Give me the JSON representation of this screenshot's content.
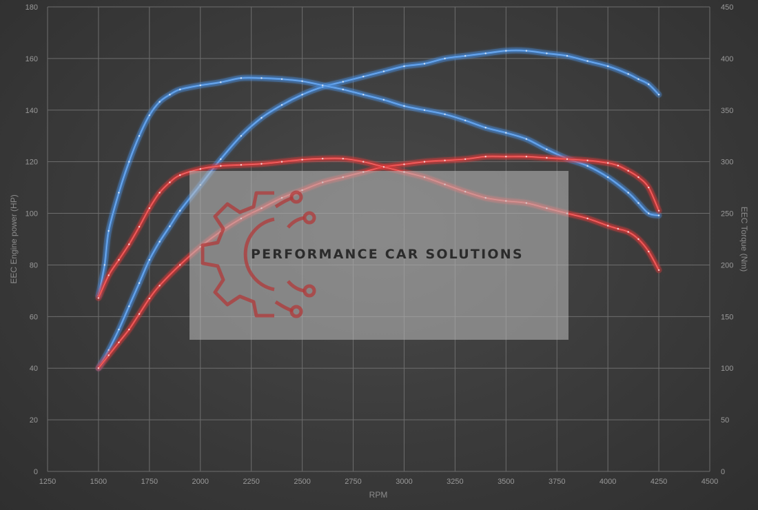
{
  "chart_data": {
    "type": "line",
    "xlabel": "RPM",
    "ylabel": "EEC Engine power (HP)",
    "y2label": "EEC Torque (Nm)",
    "xlim": [
      1250,
      4500
    ],
    "xticks": [
      1250,
      1500,
      1750,
      2000,
      2250,
      2500,
      2750,
      3000,
      3250,
      3500,
      3750,
      4000,
      4250,
      4500
    ],
    "ylim": [
      0,
      180
    ],
    "yticks": [
      0,
      20,
      40,
      60,
      80,
      100,
      120,
      140,
      160,
      180
    ],
    "y2lim": [
      0,
      450
    ],
    "y2ticks": [
      0,
      50,
      100,
      150,
      200,
      250,
      300,
      350,
      400,
      450
    ],
    "grid": true,
    "colors": {
      "tuned": "#4a8fe0",
      "stock": "#e03a3a"
    },
    "series": [
      {
        "axis": "left",
        "color": "tuned",
        "x": [
          1500,
          1550,
          1600,
          1650,
          1700,
          1750,
          1800,
          1850,
          1900,
          2000,
          2100,
          2200,
          2300,
          2400,
          2500,
          2600,
          2700,
          2800,
          2900,
          3000,
          3100,
          3200,
          3300,
          3400,
          3500,
          3600,
          3700,
          3800,
          3900,
          4000,
          4100,
          4150,
          4200,
          4250
        ],
        "y": [
          40,
          47,
          55,
          64,
          73,
          82,
          89,
          95,
          101,
          111,
          121,
          130,
          137,
          142,
          146,
          149,
          151,
          153,
          155,
          157,
          158,
          160,
          161,
          162,
          163,
          163,
          162,
          161,
          159,
          157,
          154,
          152,
          150,
          146
        ]
      },
      {
        "axis": "right",
        "color": "tuned",
        "x": [
          1500,
          1530,
          1550,
          1600,
          1650,
          1700,
          1750,
          1800,
          1850,
          1900,
          2000,
          2100,
          2200,
          2300,
          2400,
          2500,
          2600,
          2700,
          2800,
          2900,
          3000,
          3100,
          3200,
          3300,
          3400,
          3500,
          3600,
          3700,
          3800,
          3900,
          4000,
          4100,
          4150,
          4200,
          4250
        ],
        "y": [
          170,
          200,
          233,
          270,
          300,
          325,
          345,
          358,
          365,
          370,
          374,
          377,
          381,
          381,
          380,
          378,
          374,
          370,
          365,
          360,
          354,
          350,
          346,
          340,
          333,
          328,
          322,
          312,
          303,
          296,
          285,
          270,
          260,
          250,
          248
        ]
      },
      {
        "axis": "left",
        "color": "stock",
        "x": [
          1500,
          1550,
          1600,
          1650,
          1700,
          1750,
          1800,
          1900,
          2000,
          2100,
          2200,
          2300,
          2400,
          2500,
          2600,
          2700,
          2800,
          2900,
          3000,
          3100,
          3200,
          3300,
          3400,
          3500,
          3600,
          3700,
          3800,
          3900,
          4000,
          4050,
          4100,
          4150,
          4200,
          4250
        ],
        "y": [
          40,
          45,
          50,
          55,
          61,
          67,
          72,
          80,
          87,
          93,
          98,
          102,
          106,
          109,
          112,
          114,
          116,
          118,
          119,
          120,
          120.5,
          121,
          122,
          122,
          122,
          121.5,
          121,
          120.5,
          119.5,
          118.5,
          116.5,
          114,
          110,
          101
        ]
      },
      {
        "axis": "right",
        "color": "stock",
        "x": [
          1500,
          1550,
          1600,
          1650,
          1700,
          1750,
          1800,
          1850,
          1900,
          2000,
          2100,
          2200,
          2300,
          2400,
          2500,
          2600,
          2700,
          2800,
          2900,
          3000,
          3100,
          3200,
          3300,
          3400,
          3500,
          3600,
          3700,
          3800,
          3900,
          4000,
          4050,
          4100,
          4150,
          4200,
          4250
        ],
        "y": [
          168,
          190,
          205,
          220,
          237,
          255,
          270,
          280,
          287,
          293,
          296,
          297,
          298,
          300,
          302,
          303,
          303,
          300,
          295,
          290,
          285,
          278,
          271,
          265,
          262,
          260,
          255,
          250,
          245,
          238,
          235,
          232,
          225,
          213,
          195
        ]
      }
    ],
    "watermark": {
      "text": "PERFORMANCE CAR SOLUTIONS"
    }
  }
}
